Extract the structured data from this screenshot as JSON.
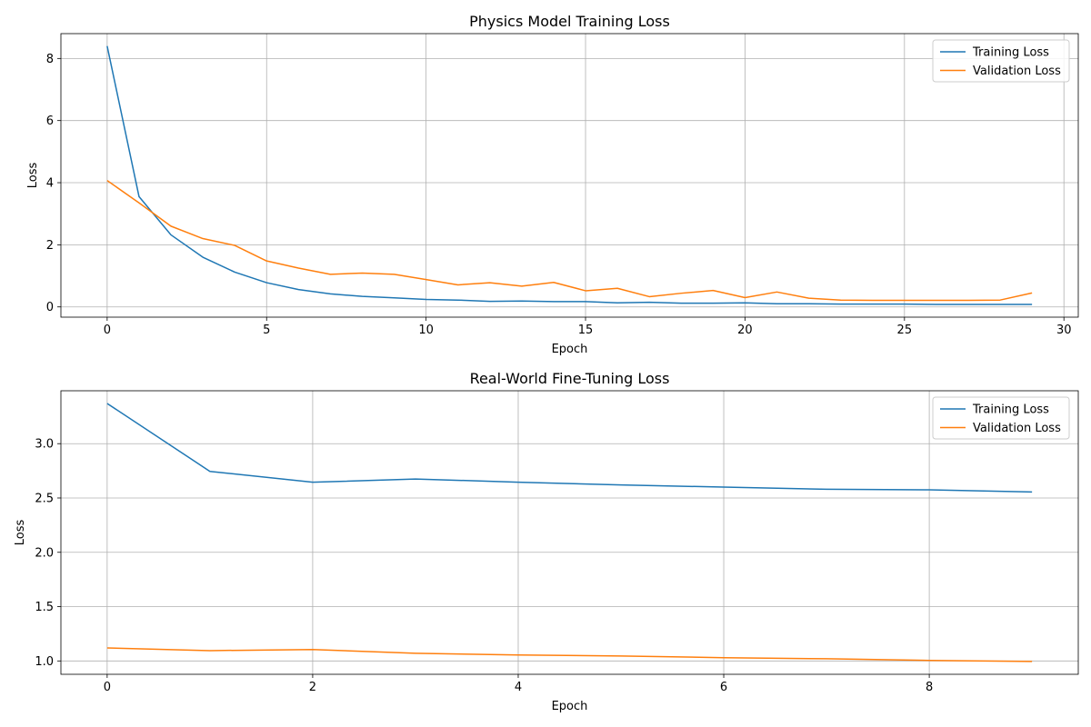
{
  "colors": {
    "training": "#1f77b4",
    "validation": "#ff7f0e",
    "grid": "#b0b0b0"
  },
  "chart_data": [
    {
      "type": "line",
      "title": "Physics Model Training Loss",
      "xlabel": "Epoch",
      "ylabel": "Loss",
      "xlim": [
        -1.45,
        30.45
      ],
      "ylim": [
        -0.33,
        8.8
      ],
      "xticks": [
        0,
        5,
        10,
        15,
        20,
        25,
        30
      ],
      "yticks": [
        0,
        2,
        4,
        6,
        8
      ],
      "grid": true,
      "legend": "top-right",
      "x": [
        0,
        1,
        2,
        3,
        4,
        5,
        6,
        7,
        8,
        9,
        10,
        11,
        12,
        13,
        14,
        15,
        16,
        17,
        18,
        19,
        20,
        21,
        22,
        23,
        24,
        25,
        26,
        27,
        28,
        29
      ],
      "series": [
        {
          "name": "Training Loss",
          "color": "#1f77b4",
          "values": [
            8.4,
            3.55,
            2.32,
            1.6,
            1.12,
            0.78,
            0.56,
            0.42,
            0.34,
            0.29,
            0.24,
            0.22,
            0.18,
            0.19,
            0.17,
            0.17,
            0.13,
            0.15,
            0.12,
            0.12,
            0.13,
            0.1,
            0.1,
            0.09,
            0.09,
            0.09,
            0.08,
            0.08,
            0.08,
            0.08
          ]
        },
        {
          "name": "Validation Loss",
          "color": "#ff7f0e",
          "values": [
            4.07,
            3.35,
            2.6,
            2.2,
            1.98,
            1.48,
            1.25,
            1.05,
            1.09,
            1.05,
            0.88,
            0.71,
            0.78,
            0.67,
            0.79,
            0.52,
            0.6,
            0.33,
            0.44,
            0.53,
            0.3,
            0.48,
            0.28,
            0.22,
            0.21,
            0.21,
            0.21,
            0.21,
            0.22,
            0.45
          ]
        }
      ]
    },
    {
      "type": "line",
      "title": "Real-World Fine-Tuning Loss",
      "xlabel": "Epoch",
      "ylabel": "Loss",
      "xlim": [
        -0.45,
        9.45
      ],
      "ylim": [
        0.877,
        3.487
      ],
      "xticks": [
        0,
        2,
        4,
        6,
        8
      ],
      "yticks": [
        1.0,
        1.5,
        2.0,
        2.5,
        3.0
      ],
      "ytick_labels": [
        "1.0",
        "1.5",
        "2.0",
        "2.5",
        "3.0"
      ],
      "grid": true,
      "legend": "top-right",
      "x": [
        0,
        1,
        2,
        3,
        4,
        5,
        6,
        7,
        8,
        9
      ],
      "series": [
        {
          "name": "Training Loss",
          "color": "#1f77b4",
          "values": [
            3.37,
            2.745,
            2.645,
            2.675,
            2.645,
            2.62,
            2.6,
            2.58,
            2.575,
            2.555
          ]
        },
        {
          "name": "Validation Loss",
          "color": "#ff7f0e",
          "values": [
            1.12,
            1.095,
            1.105,
            1.07,
            1.055,
            1.045,
            1.03,
            1.02,
            1.005,
            0.995
          ]
        }
      ]
    }
  ]
}
